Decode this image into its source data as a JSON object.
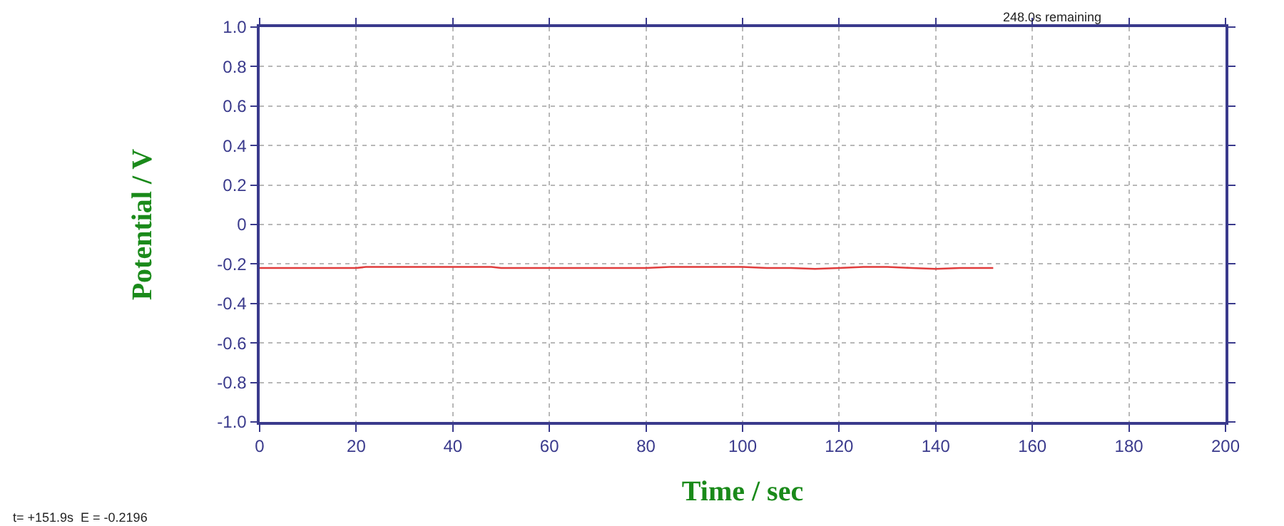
{
  "chart_data": {
    "type": "line",
    "xlabel": "Time / sec",
    "ylabel": "Potential / V",
    "annotations": [
      "248.0s remaining",
      "t= +151.9s  E = -0.2196"
    ],
    "x": [
      0,
      10,
      20,
      22,
      40,
      48,
      50,
      70,
      80,
      85,
      100,
      105,
      110,
      115,
      120,
      125,
      130,
      135,
      140,
      145,
      151.9
    ],
    "series": [
      {
        "color": "#e03c3c",
        "values": [
          -0.22,
          -0.22,
          -0.22,
          -0.215,
          -0.215,
          -0.215,
          -0.22,
          -0.22,
          -0.22,
          -0.215,
          -0.215,
          -0.22,
          -0.22,
          -0.225,
          -0.22,
          -0.215,
          -0.215,
          -0.22,
          -0.225,
          -0.22,
          -0.22
        ]
      }
    ],
    "xlim": [
      0,
      200
    ],
    "xticks": [
      0,
      20,
      40,
      60,
      80,
      100,
      120,
      140,
      160,
      180,
      200
    ],
    "ylim": [
      -1,
      1
    ],
    "yticks": [
      {
        "value": -1,
        "label": "-1.0"
      },
      -0.8,
      -0.6,
      -0.4,
      -0.2,
      0,
      0.2,
      0.4,
      0.6,
      0.8,
      {
        "value": 1,
        "label": "1.0"
      }
    ],
    "grid": true,
    "marker": "none",
    "line_style": "solid"
  }
}
